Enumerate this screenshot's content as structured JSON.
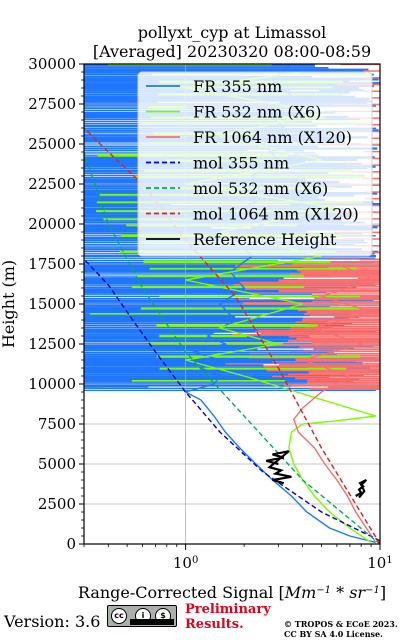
{
  "chart_data": {
    "type": "line",
    "title": [
      "pollyxt_cyp at Limassol",
      "[Averaged] 20230320 08:00-08:59"
    ],
    "xlabel": "Range-Corrected Signal [Mm^-1 * sr^-1]",
    "xlabel_parts": {
      "prefix": "Range-Corrected Signal [",
      "mm": "Mm",
      "mm_exp": "−1",
      "star": " * ",
      "sr": "sr",
      "sr_exp": "−1",
      "suffix": "]"
    },
    "ylabel": "Height (m)",
    "xscale": "log",
    "xlim": [
      0.3,
      10
    ],
    "ylim": [
      0,
      30000
    ],
    "x_ticks": [
      {
        "value": 1,
        "base": "10",
        "exp": "0"
      },
      {
        "value": 10,
        "base": "10",
        "exp": "1"
      }
    ],
    "y_ticks": [
      0,
      2500,
      5000,
      7500,
      10000,
      12500,
      15000,
      17500,
      20000,
      22500,
      25000,
      27500,
      30000
    ],
    "y_tick_labels": [
      "0",
      "2500",
      "5000",
      "7500",
      "10000",
      "12500",
      "15000",
      "17500",
      "20000",
      "22500",
      "25000",
      "27500",
      "30000"
    ],
    "grid": true,
    "legend_position": "top-right",
    "series": [
      {
        "name": "FR 355 nm",
        "color": "#1f77fe",
        "style": "solid",
        "points": [
          [
            9.5,
            100
          ],
          [
            7.0,
            500
          ],
          [
            5.5,
            1000
          ],
          [
            4.2,
            2000
          ],
          [
            3.5,
            3000
          ],
          [
            2.8,
            4000
          ],
          [
            2.3,
            5000
          ],
          [
            1.9,
            6000
          ],
          [
            1.6,
            7000
          ],
          [
            1.4,
            8000
          ],
          [
            1.2,
            9000
          ],
          [
            1.0,
            9500
          ],
          [
            1.4,
            10000
          ],
          [
            1.5,
            10500
          ],
          [
            1.2,
            11000
          ],
          [
            1.5,
            11500
          ],
          [
            1.1,
            12000
          ],
          [
            1.6,
            12500
          ],
          [
            1.3,
            13000
          ],
          [
            1.8,
            14000
          ],
          [
            1.5,
            15000
          ],
          [
            2.0,
            16000
          ],
          [
            1.7,
            17000
          ],
          [
            2.2,
            18000
          ],
          [
            1.8,
            19000
          ],
          [
            2.5,
            20000
          ],
          [
            2.0,
            21000
          ],
          [
            2.8,
            22000
          ],
          [
            2.2,
            23000
          ],
          [
            3.0,
            24000
          ],
          [
            2.5,
            25000
          ],
          [
            3.2,
            26000
          ],
          [
            2.6,
            27000
          ],
          [
            3.5,
            28000
          ],
          [
            2.8,
            29000
          ],
          [
            3.5,
            30000
          ]
        ]
      },
      {
        "name": "FR 532 nm (X6)",
        "color": "#7cfc00",
        "style": "solid",
        "points": [
          [
            9.0,
            100
          ],
          [
            7.0,
            1000
          ],
          [
            5.5,
            2000
          ],
          [
            4.6,
            3000
          ],
          [
            4.0,
            4000
          ],
          [
            3.6,
            5000
          ],
          [
            3.4,
            6000
          ],
          [
            3.5,
            7000
          ],
          [
            4.0,
            7500
          ],
          [
            6.0,
            7700
          ],
          [
            9.5,
            8000
          ],
          [
            2.0,
            10500
          ],
          [
            1.0,
            11500
          ],
          [
            3.0,
            12500
          ],
          [
            1.5,
            13500
          ],
          [
            4.0,
            15000
          ],
          [
            1.0,
            16500
          ],
          [
            5.0,
            18000
          ],
          [
            1.5,
            19500
          ],
          [
            6.0,
            21000
          ],
          [
            1.0,
            22500
          ],
          [
            5.0,
            24000
          ],
          [
            1.5,
            25500
          ],
          [
            5.0,
            27000
          ],
          [
            1.0,
            28500
          ],
          [
            4.0,
            29500
          ]
        ]
      },
      {
        "name": "FR 1064 nm (X120)",
        "color": "#fa7070",
        "style": "solid",
        "points": [
          [
            9.5,
            100
          ],
          [
            8.5,
            1000
          ],
          [
            7.5,
            2000
          ],
          [
            6.8,
            3000
          ],
          [
            6.0,
            4000
          ],
          [
            5.2,
            5000
          ],
          [
            4.6,
            6000
          ],
          [
            3.8,
            7000
          ],
          [
            3.6,
            7800
          ],
          [
            4.0,
            8500
          ],
          [
            5.0,
            9500
          ],
          [
            7.0,
            10500
          ],
          [
            4.0,
            11500
          ],
          [
            8.0,
            12500
          ],
          [
            4.5,
            13500
          ],
          [
            9.0,
            14500
          ],
          [
            5.0,
            15500
          ],
          [
            9.5,
            16500
          ],
          [
            6.0,
            17500
          ]
        ]
      },
      {
        "name": "mol 355 nm",
        "color": "#0000cc",
        "style": "dashed",
        "points": [
          [
            10,
            200
          ],
          [
            5,
            2000
          ],
          [
            2.5,
            4500
          ],
          [
            1.5,
            7000
          ],
          [
            1.0,
            9500
          ],
          [
            0.7,
            12000
          ],
          [
            0.5,
            14500
          ],
          [
            0.4,
            16200
          ],
          [
            0.3,
            17800
          ]
        ]
      },
      {
        "name": "mol 532 nm (X6)",
        "color": "#00b050",
        "style": "dashed",
        "points": [
          [
            10,
            0
          ],
          [
            4,
            4000
          ],
          [
            2,
            8000
          ],
          [
            1,
            12000
          ],
          [
            0.6,
            16000
          ],
          [
            0.4,
            20000
          ],
          [
            0.3,
            24500
          ]
        ]
      },
      {
        "name": "mol 1064 nm (X120)",
        "color": "#e02020",
        "style": "dashed",
        "points": [
          [
            10,
            0
          ],
          [
            5,
            6000
          ],
          [
            3,
            11000
          ],
          [
            1.8,
            15500
          ],
          [
            1.0,
            19000
          ],
          [
            0.6,
            22500
          ],
          [
            0.4,
            24500
          ],
          [
            0.3,
            26000
          ]
        ]
      },
      {
        "name": "Reference Height",
        "color": "#000000",
        "style": "solid",
        "segments": [
          {
            "x": [
              3.0,
              2.6,
              3.2,
              2.8,
              3.4,
              2.7,
              3.1,
              2.9,
              3.5,
              2.8,
              3.2
            ],
            "y": [
              5000,
              5200,
              5400,
              5600,
              5800,
              4800,
              4600,
              4400,
              4200,
              4000,
              3800
            ]
          },
          {
            "x": [
              7.5,
              8.0,
              7.8,
              8.2,
              7.9,
              8.5,
              8.0,
              8.3,
              7.8
            ],
            "y": [
              3000,
              3200,
              3400,
              3600,
              3800,
              4000,
              3700,
              3300,
              2900
            ]
          }
        ]
      }
    ]
  },
  "footer": {
    "version": "Version: 3.6",
    "cc_labels": [
      "cc",
      "i",
      "$"
    ],
    "preliminary": [
      "Preliminary",
      "Results."
    ],
    "copyright": [
      "© TROPOS & ECoE 2023.",
      "CC BY SA 4.0 License."
    ]
  }
}
